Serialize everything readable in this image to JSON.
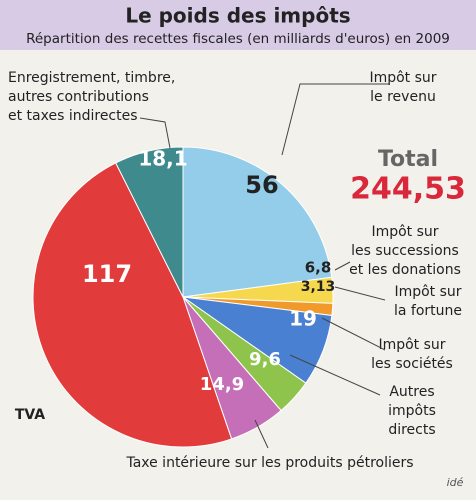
{
  "chart_data": {
    "type": "pie",
    "title": "Le poids des impôts",
    "subtitle": "Répartition des recettes fiscales (en milliards d'euros) en 2009",
    "categories": [
      [
        "Impôt sur",
        "le revenu"
      ],
      [
        "Impôt sur",
        "les successions",
        "et les donations"
      ],
      [
        "Impôt sur",
        "la fortune"
      ],
      [
        "Impôt sur",
        "les sociétés"
      ],
      [
        "Autres",
        "impôts",
        "directs"
      ],
      [
        "Taxe intérieure sur les produits pétroliers"
      ],
      [
        "TVA"
      ],
      [
        "Enregistrement, timbre,",
        "autres contributions",
        "et taxes indirectes"
      ]
    ],
    "values": [
      56,
      6.8,
      3.13,
      19,
      9.6,
      14.9,
      117,
      18.1
    ],
    "value_labels": [
      "56",
      "6,8",
      "3,13",
      "19",
      "9,6",
      "14,9",
      "117",
      "18,1"
    ],
    "colors": [
      "#93cde9",
      "#f6d84e",
      "#f09a2c",
      "#4a80d2",
      "#8fc44c",
      "#c66fb9",
      "#e13b3b",
      "#3f8a8d"
    ],
    "total": {
      "label": "Total",
      "value": 244.53,
      "value_label": "244,53"
    },
    "source": "idé"
  }
}
